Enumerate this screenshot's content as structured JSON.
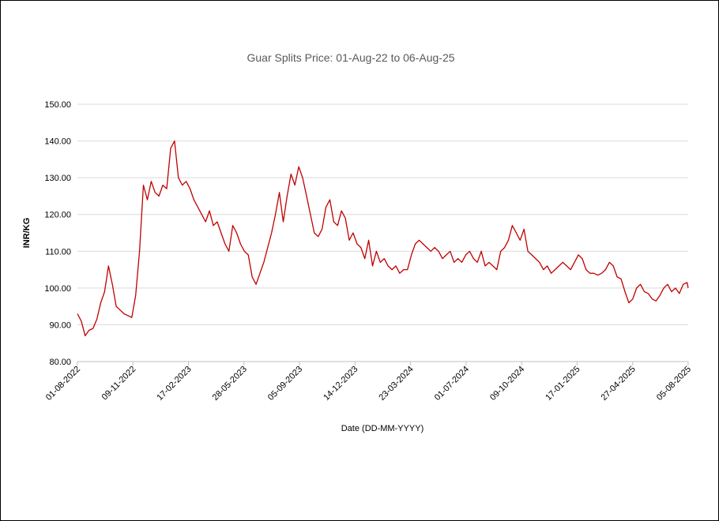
{
  "chart_data": {
    "type": "line",
    "title": "Guar Splits Price: 01-Aug-22 to 06-Aug-25",
    "xlabel": "Date (DD-MM-YYYY)",
    "ylabel": "INR/KG",
    "ylim": [
      80,
      150
    ],
    "y_ticks": [
      "80.00",
      "90.00",
      "100.00",
      "110.00",
      "120.00",
      "130.00",
      "140.00",
      "150.00"
    ],
    "x_ticks": [
      "01-08-2022",
      "09-11-2022",
      "17-02-2023",
      "28-05-2023",
      "05-09-2023",
      "14-12-2023",
      "23-03-2024",
      "01-07-2024",
      "09-10-2024",
      "17-01-2025",
      "27-04-2025",
      "05-08-2025"
    ],
    "x_range": [
      "2022-08-01",
      "2025-08-06"
    ],
    "grid": true,
    "legend": "none",
    "line_color": "#C00000",
    "series": [
      {
        "x": [
          "2022-08-01",
          "2022-08-08",
          "2022-08-15",
          "2022-08-22",
          "2022-08-29",
          "2022-09-05",
          "2022-09-12",
          "2022-09-19",
          "2022-09-26",
          "2022-10-03",
          "2022-10-10",
          "2022-10-17",
          "2022-10-24",
          "2022-10-31",
          "2022-11-07",
          "2022-11-14",
          "2022-11-21",
          "2022-11-28",
          "2022-12-05",
          "2022-12-12",
          "2022-12-19",
          "2022-12-26",
          "2023-01-02",
          "2023-01-09",
          "2023-01-16",
          "2023-01-23",
          "2023-01-30",
          "2023-02-06",
          "2023-02-13",
          "2023-02-20",
          "2023-02-27",
          "2023-03-06",
          "2023-03-13",
          "2023-03-20",
          "2023-03-27",
          "2023-04-03",
          "2023-04-10",
          "2023-04-17",
          "2023-04-24",
          "2023-05-01",
          "2023-05-08",
          "2023-05-15",
          "2023-05-22",
          "2023-05-29",
          "2023-06-05",
          "2023-06-12",
          "2023-06-19",
          "2023-06-26",
          "2023-07-03",
          "2023-07-10",
          "2023-07-17",
          "2023-07-24",
          "2023-07-31",
          "2023-08-07",
          "2023-08-14",
          "2023-08-21",
          "2023-08-28",
          "2023-09-04",
          "2023-09-11",
          "2023-09-18",
          "2023-09-25",
          "2023-10-02",
          "2023-10-09",
          "2023-10-16",
          "2023-10-23",
          "2023-10-30",
          "2023-11-06",
          "2023-11-13",
          "2023-11-20",
          "2023-11-27",
          "2023-12-04",
          "2023-12-11",
          "2023-12-18",
          "2023-12-25",
          "2024-01-01",
          "2024-01-08",
          "2024-01-15",
          "2024-01-22",
          "2024-01-29",
          "2024-02-05",
          "2024-02-12",
          "2024-02-19",
          "2024-02-26",
          "2024-03-04",
          "2024-03-11",
          "2024-03-18",
          "2024-03-25",
          "2024-04-01",
          "2024-04-08",
          "2024-04-15",
          "2024-04-22",
          "2024-04-29",
          "2024-05-06",
          "2024-05-13",
          "2024-05-20",
          "2024-05-27",
          "2024-06-03",
          "2024-06-10",
          "2024-06-17",
          "2024-06-24",
          "2024-07-01",
          "2024-07-08",
          "2024-07-15",
          "2024-07-22",
          "2024-07-29",
          "2024-08-05",
          "2024-08-12",
          "2024-08-19",
          "2024-08-26",
          "2024-09-02",
          "2024-09-09",
          "2024-09-16",
          "2024-09-23",
          "2024-09-30",
          "2024-10-07",
          "2024-10-14",
          "2024-10-21",
          "2024-10-28",
          "2024-11-04",
          "2024-11-11",
          "2024-11-18",
          "2024-11-25",
          "2024-12-02",
          "2024-12-09",
          "2024-12-16",
          "2024-12-23",
          "2024-12-30",
          "2025-01-06",
          "2025-01-13",
          "2025-01-20",
          "2025-01-27",
          "2025-02-03",
          "2025-02-10",
          "2025-02-17",
          "2025-02-24",
          "2025-03-03",
          "2025-03-10",
          "2025-03-17",
          "2025-03-24",
          "2025-03-31",
          "2025-04-07",
          "2025-04-14",
          "2025-04-21",
          "2025-04-28",
          "2025-05-05",
          "2025-05-12",
          "2025-05-19",
          "2025-05-26",
          "2025-06-02",
          "2025-06-09",
          "2025-06-16",
          "2025-06-23",
          "2025-06-30",
          "2025-07-07",
          "2025-07-14",
          "2025-07-21",
          "2025-07-28",
          "2025-08-04",
          "2025-08-06"
        ],
        "values": [
          93.0,
          91.0,
          87.0,
          88.5,
          89.0,
          91.5,
          96.0,
          99.0,
          106.0,
          101.0,
          95.0,
          94.0,
          93.0,
          92.5,
          92.0,
          98.0,
          110.0,
          128.0,
          124.0,
          129.0,
          126.0,
          125.0,
          128.0,
          127.0,
          138.0,
          140.0,
          130.0,
          128.0,
          129.0,
          127.0,
          124.0,
          122.0,
          120.0,
          118.0,
          121.0,
          117.0,
          118.0,
          115.0,
          112.0,
          110.0,
          117.0,
          115.0,
          112.0,
          110.0,
          109.0,
          103.0,
          101.0,
          104.0,
          107.0,
          111.0,
          115.0,
          120.0,
          126.0,
          118.0,
          125.0,
          131.0,
          128.0,
          133.0,
          130.0,
          125.0,
          120.0,
          115.0,
          114.0,
          116.0,
          122.0,
          124.0,
          118.0,
          117.0,
          121.0,
          119.0,
          113.0,
          115.0,
          112.0,
          111.0,
          108.0,
          113.0,
          106.0,
          110.0,
          107.0,
          108.0,
          106.0,
          105.0,
          106.0,
          104.0,
          105.0,
          105.0,
          109.0,
          112.0,
          113.0,
          112.0,
          111.0,
          110.0,
          111.0,
          110.0,
          108.0,
          109.0,
          110.0,
          107.0,
          108.0,
          107.0,
          109.0,
          110.0,
          108.0,
          107.0,
          110.0,
          106.0,
          107.0,
          106.0,
          105.0,
          110.0,
          111.0,
          113.0,
          117.0,
          115.0,
          113.0,
          116.0,
          110.0,
          109.0,
          108.0,
          107.0,
          105.0,
          106.0,
          104.0,
          105.0,
          106.0,
          107.0,
          106.0,
          105.0,
          107.0,
          109.0,
          108.0,
          105.0,
          104.0,
          104.0,
          103.5,
          104.0,
          105.0,
          107.0,
          106.0,
          103.0,
          102.5,
          99.0,
          96.0,
          97.0,
          100.0,
          101.0,
          99.0,
          98.5,
          97.0,
          96.5,
          98.0,
          100.0,
          101.0,
          99.0,
          100.0,
          98.5,
          101.0,
          101.5,
          100.0
        ]
      }
    ]
  }
}
